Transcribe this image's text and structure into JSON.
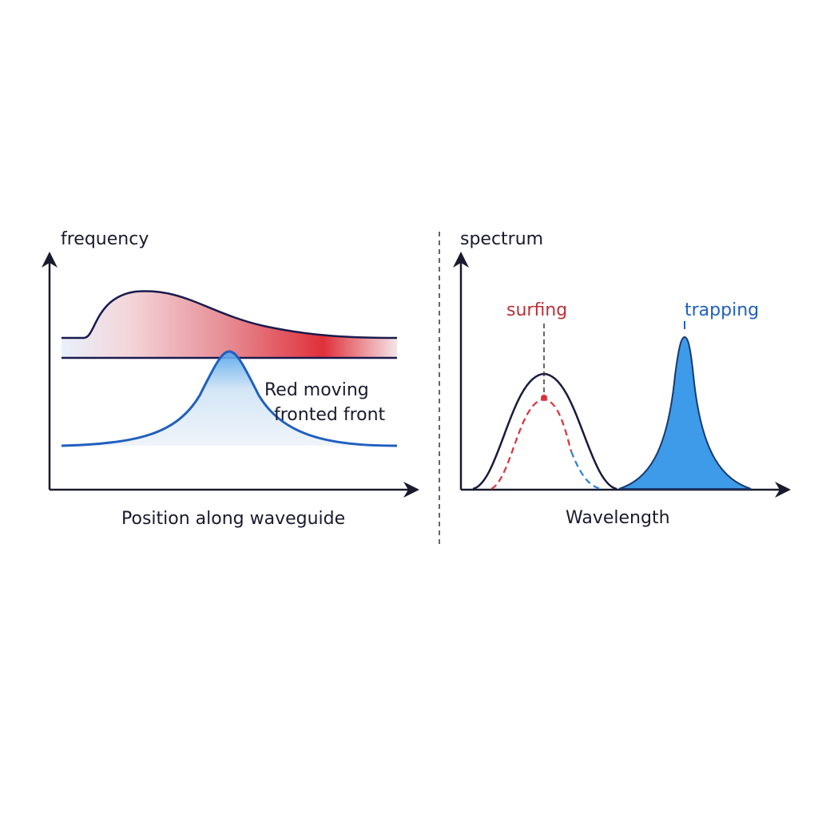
{
  "left_panel": {
    "y_label": "frequency",
    "x_label": "Position along waveguide",
    "annotation": [
      "Red moving",
      "fronted front"
    ]
  },
  "right_panel": {
    "y_label": "spectrum",
    "x_label": "Wavelength",
    "labels": {
      "surfing": "surfing",
      "trapping": "trapping"
    }
  }
}
